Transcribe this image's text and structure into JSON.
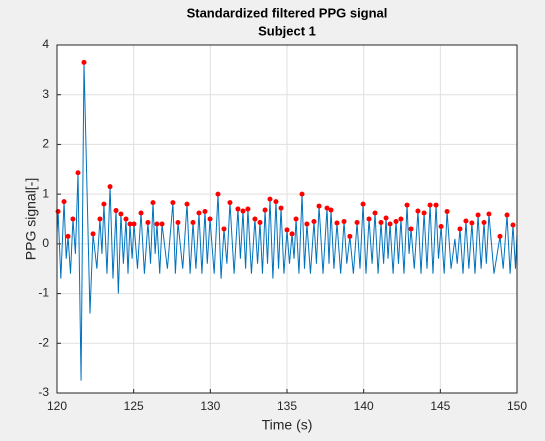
{
  "chart_data": {
    "type": "line",
    "title": "Standardized filtered PPG signal",
    "subtitle": "Subject 1",
    "xlabel": "Time (s)",
    "ylabel": "PPG signal[-]",
    "xlim": [
      120,
      150
    ],
    "xticks": [
      120,
      125,
      130,
      135,
      140,
      145,
      150
    ],
    "ylim": [
      -3,
      4
    ],
    "yticks": [
      -3,
      -2,
      -1,
      0,
      1,
      2,
      3,
      4
    ],
    "grid": true,
    "signal": {
      "color": "#0072bd",
      "x": [
        120.0,
        120.07,
        120.25,
        120.46,
        120.6,
        120.72,
        120.88,
        121.04,
        121.2,
        121.37,
        121.57,
        121.76,
        122.15,
        122.35,
        122.6,
        122.8,
        122.93,
        123.06,
        123.26,
        123.46,
        123.65,
        123.85,
        124.0,
        124.17,
        124.33,
        124.5,
        124.63,
        124.76,
        124.9,
        125.02,
        125.25,
        125.48,
        125.7,
        125.93,
        126.1,
        126.26,
        126.4,
        126.52,
        126.7,
        126.85,
        127.2,
        127.56,
        127.72,
        127.89,
        128.2,
        128.48,
        128.68,
        128.87,
        129.06,
        129.26,
        129.45,
        129.65,
        129.8,
        129.98,
        130.25,
        130.5,
        130.7,
        130.89,
        131.08,
        131.28,
        131.55,
        131.8,
        131.96,
        132.13,
        132.3,
        132.45,
        132.68,
        132.91,
        133.08,
        133.24,
        133.4,
        133.57,
        133.73,
        133.89,
        134.08,
        134.28,
        134.45,
        134.61,
        134.8,
        135.0,
        135.16,
        135.33,
        135.46,
        135.59,
        135.78,
        135.98,
        136.14,
        136.3,
        136.53,
        136.76,
        136.92,
        137.09,
        137.35,
        137.61,
        137.74,
        137.87,
        138.06,
        138.26,
        138.5,
        138.72,
        138.9,
        139.1,
        139.33,
        139.57,
        139.76,
        139.96,
        140.15,
        140.35,
        140.55,
        140.74,
        140.94,
        141.13,
        141.3,
        141.46,
        141.59,
        141.72,
        141.92,
        142.11,
        142.27,
        142.43,
        142.63,
        142.83,
        142.96,
        143.09,
        143.3,
        143.54,
        143.74,
        143.94,
        144.13,
        144.33,
        144.52,
        144.72,
        144.88,
        145.05,
        145.25,
        145.44,
        145.7,
        145.95,
        146.1,
        146.28,
        146.48,
        146.67,
        146.86,
        147.06,
        147.26,
        147.46,
        147.66,
        147.85,
        148.0,
        148.17,
        148.5,
        148.89,
        149.1,
        149.35,
        149.55,
        149.74,
        149.9,
        150.0
      ],
      "values": [
        0.2,
        0.65,
        -0.7,
        0.85,
        -0.3,
        0.15,
        -0.6,
        0.5,
        -0.2,
        1.43,
        -2.75,
        3.65,
        -1.4,
        0.2,
        -0.5,
        0.5,
        -0.2,
        0.8,
        -0.6,
        1.15,
        -0.7,
        0.67,
        -1.0,
        0.6,
        -0.4,
        0.5,
        -0.6,
        0.4,
        -0.3,
        0.4,
        -0.5,
        0.62,
        -0.6,
        0.43,
        -0.4,
        0.83,
        -0.2,
        0.4,
        -0.6,
        0.4,
        -0.5,
        0.83,
        -0.6,
        0.43,
        -0.5,
        0.8,
        -0.6,
        0.43,
        -0.5,
        0.62,
        -0.6,
        0.65,
        -0.4,
        0.5,
        -0.6,
        1.0,
        -0.7,
        0.3,
        -0.4,
        0.83,
        -0.6,
        0.7,
        -0.3,
        0.66,
        -0.5,
        0.7,
        -0.6,
        0.5,
        -0.4,
        0.43,
        -0.6,
        0.68,
        -0.4,
        0.9,
        -0.7,
        0.85,
        -0.5,
        0.72,
        -0.6,
        0.28,
        -0.4,
        0.2,
        -0.3,
        0.5,
        -0.6,
        1.0,
        -0.5,
        0.4,
        -0.6,
        0.45,
        -0.4,
        0.76,
        -0.6,
        0.72,
        -0.4,
        0.68,
        -0.5,
        0.42,
        -0.6,
        0.45,
        -0.4,
        0.15,
        -0.6,
        0.43,
        -0.5,
        0.8,
        -0.6,
        0.5,
        -0.4,
        0.62,
        -0.6,
        0.43,
        -0.4,
        0.52,
        -0.3,
        0.4,
        -0.6,
        0.45,
        -0.4,
        0.5,
        -0.6,
        0.78,
        -0.2,
        0.3,
        -0.5,
        0.66,
        -0.6,
        0.62,
        -0.5,
        0.78,
        -0.6,
        0.78,
        -0.3,
        0.35,
        -0.6,
        0.65,
        -0.5,
        0.1,
        -0.4,
        0.3,
        -0.6,
        0.46,
        -0.5,
        0.42,
        -0.6,
        0.58,
        -0.5,
        0.43,
        -0.4,
        0.6,
        -0.6,
        0.15,
        -0.5,
        0.58,
        -0.6,
        0.38,
        -0.5,
        0.2
      ]
    },
    "peaks": {
      "color": "#ff0000",
      "x": [
        120.07,
        120.46,
        120.72,
        121.04,
        121.37,
        121.76,
        122.35,
        122.8,
        123.06,
        123.46,
        123.85,
        124.17,
        124.5,
        124.76,
        125.02,
        125.48,
        125.93,
        126.26,
        126.52,
        126.85,
        127.56,
        127.89,
        128.48,
        128.87,
        129.26,
        129.65,
        129.98,
        130.5,
        130.89,
        131.28,
        131.8,
        132.13,
        132.45,
        132.91,
        133.24,
        133.57,
        133.89,
        134.28,
        134.61,
        135.0,
        135.33,
        135.59,
        135.98,
        136.3,
        136.76,
        137.09,
        137.61,
        137.87,
        138.26,
        138.72,
        139.1,
        139.57,
        139.96,
        140.35,
        140.74,
        141.13,
        141.46,
        141.72,
        142.11,
        142.43,
        142.83,
        143.09,
        143.54,
        143.94,
        144.33,
        144.72,
        145.05,
        145.44,
        146.28,
        146.67,
        147.06,
        147.46,
        147.85,
        148.17,
        148.89,
        149.35,
        149.74
      ],
      "values": [
        0.65,
        0.85,
        0.15,
        0.5,
        1.43,
        3.65,
        0.2,
        0.5,
        0.8,
        1.15,
        0.67,
        0.6,
        0.5,
        0.4,
        0.4,
        0.62,
        0.43,
        0.83,
        0.4,
        0.4,
        0.83,
        0.43,
        0.8,
        0.43,
        0.62,
        0.65,
        0.5,
        1.0,
        0.3,
        0.83,
        0.7,
        0.66,
        0.7,
        0.5,
        0.43,
        0.68,
        0.9,
        0.85,
        0.72,
        0.28,
        0.2,
        0.5,
        1.0,
        0.4,
        0.45,
        0.76,
        0.72,
        0.68,
        0.42,
        0.45,
        0.15,
        0.43,
        0.8,
        0.5,
        0.62,
        0.43,
        0.52,
        0.4,
        0.45,
        0.5,
        0.78,
        0.3,
        0.66,
        0.62,
        0.78,
        0.78,
        0.35,
        0.65,
        0.3,
        0.46,
        0.42,
        0.58,
        0.43,
        0.6,
        0.15,
        0.58,
        0.38
      ]
    }
  }
}
